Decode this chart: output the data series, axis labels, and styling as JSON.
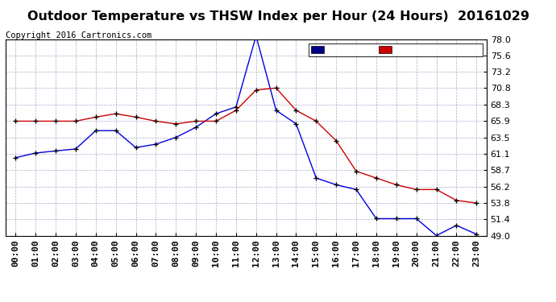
{
  "title": "Outdoor Temperature vs THSW Index per Hour (24 Hours)  20161029",
  "copyright": "Copyright 2016 Cartronics.com",
  "hours": [
    "00:00",
    "01:00",
    "02:00",
    "03:00",
    "04:00",
    "05:00",
    "06:00",
    "07:00",
    "08:00",
    "09:00",
    "10:00",
    "11:00",
    "12:00",
    "13:00",
    "14:00",
    "15:00",
    "16:00",
    "17:00",
    "18:00",
    "19:00",
    "20:00",
    "21:00",
    "22:00",
    "23:00"
  ],
  "thsw": [
    60.5,
    61.2,
    61.5,
    61.8,
    64.5,
    64.5,
    62.0,
    62.5,
    63.5,
    65.0,
    67.0,
    68.0,
    78.5,
    67.5,
    65.5,
    57.5,
    56.5,
    55.8,
    51.5,
    51.5,
    51.5,
    49.0,
    50.5,
    49.2
  ],
  "temperature": [
    65.9,
    65.9,
    65.9,
    65.9,
    66.5,
    67.0,
    66.5,
    65.9,
    65.5,
    65.9,
    65.9,
    67.5,
    70.5,
    70.8,
    67.5,
    65.9,
    63.0,
    58.5,
    57.5,
    56.5,
    55.8,
    55.8,
    54.2,
    53.8
  ],
  "thsw_color": "#0000dd",
  "temp_color": "#cc0000",
  "ylim_min": 49.0,
  "ylim_max": 78.0,
  "yticks": [
    49.0,
    51.4,
    53.8,
    56.2,
    58.7,
    61.1,
    63.5,
    65.9,
    68.3,
    70.8,
    73.2,
    75.6,
    78.0
  ],
  "bg_color": "#ffffff",
  "plot_bg_color": "#ffffff",
  "grid_color": "#aaaacc",
  "legend_thsw_bg": "#000088",
  "legend_temp_bg": "#cc0000",
  "title_fontsize": 11.5,
  "copyright_fontsize": 7.5,
  "tick_fontsize": 8
}
